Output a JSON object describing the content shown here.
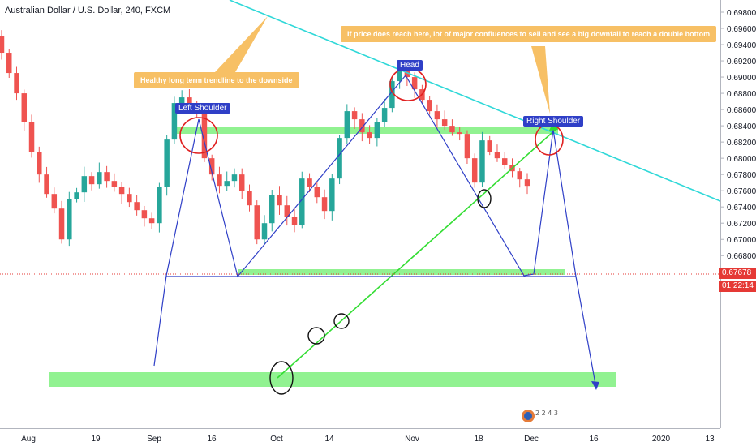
{
  "symbol_title": "Australian Dollar / U.S. Dollar, 240, FXCM",
  "colors": {
    "up": "#26a69a",
    "down": "#ef5350",
    "pattern": "#2f3fc7",
    "trend_down": "#2fd8d8",
    "trend_up": "#33dd33",
    "zone": "#7ef07e",
    "note": "#f7c065",
    "circle": "#e02020",
    "price_line": "#e53935",
    "price_flag": "#e53935",
    "countdown_flag": "#e53935"
  },
  "annotations": {
    "trendline_note": "Healthy long term trendline to the downside",
    "confluence_note": "If price does reach here, lot of major confluences to sell and see a big downfall to reach a double bottom",
    "left_shoulder": "Left Shoulder",
    "head": "Head",
    "right_shoulder": "Right Shoulder"
  },
  "price_flag": "0.67678",
  "countdown": "01:22:14",
  "chart_data": {
    "type": "candlestick",
    "title": "Australian Dollar / U.S. Dollar, 240, FXCM",
    "x_tick_labels": [
      "Aug",
      "19",
      "Sep",
      "16",
      "Oct",
      "14",
      "Nov",
      "18",
      "Dec",
      "16",
      "2020",
      "13"
    ],
    "y_tick_labels": [
      "0.69800",
      "0.69600",
      "0.69400",
      "0.69200",
      "0.69000",
      "0.68800",
      "0.68600",
      "0.68400",
      "0.68200",
      "0.68000",
      "0.67800",
      "0.67600",
      "0.67400",
      "0.67200",
      "0.67000",
      "0.66800",
      "0.66600"
    ],
    "ylim": [
      0.6652,
      0.6988
    ],
    "last_price": 0.67678,
    "series": [
      {
        "values": [
          [
            0.695,
            0.693
          ],
          [
            0.693,
            0.6905
          ],
          [
            0.6905,
            0.688
          ],
          [
            0.688,
            0.6845
          ],
          [
            0.6845,
            0.6808
          ],
          [
            0.6808,
            0.678
          ],
          [
            0.678,
            0.6756
          ],
          [
            0.6756,
            0.6738
          ],
          [
            0.6738,
            0.67
          ],
          [
            0.67,
            0.675
          ],
          [
            0.675,
            0.6758
          ],
          [
            0.6758,
            0.6778
          ],
          [
            0.6778,
            0.6768
          ],
          [
            0.6768,
            0.6783
          ],
          [
            0.6783,
            0.6772
          ],
          [
            0.6772,
            0.6765
          ],
          [
            0.6765,
            0.6756
          ],
          [
            0.6756,
            0.6746
          ],
          [
            0.6746,
            0.6736
          ],
          [
            0.6736,
            0.6726
          ],
          [
            0.6726,
            0.672
          ],
          [
            0.672,
            0.6765
          ],
          [
            0.6765,
            0.6823
          ],
          [
            0.6823,
            0.6868
          ],
          [
            0.6868,
            0.6875
          ],
          [
            0.6875,
            0.6865
          ],
          [
            0.6865,
            0.6855
          ],
          [
            0.6855,
            0.68
          ],
          [
            0.68,
            0.678
          ],
          [
            0.678,
            0.6766
          ],
          [
            0.6766,
            0.6772
          ],
          [
            0.6772,
            0.678
          ],
          [
            0.678,
            0.676
          ],
          [
            0.676,
            0.6742
          ],
          [
            0.6742,
            0.67
          ],
          [
            0.67,
            0.672
          ],
          [
            0.672,
            0.6755
          ],
          [
            0.6755,
            0.6742
          ],
          [
            0.6742,
            0.6728
          ],
          [
            0.6728,
            0.6718
          ],
          [
            0.6718,
            0.6775
          ],
          [
            0.6775,
            0.6765
          ],
          [
            0.6765,
            0.6752
          ],
          [
            0.6752,
            0.6735
          ],
          [
            0.6735,
            0.6775
          ],
          [
            0.6775,
            0.6825
          ],
          [
            0.6825,
            0.6858
          ],
          [
            0.6858,
            0.6848
          ],
          [
            0.6848,
            0.6832
          ],
          [
            0.6832,
            0.6825
          ],
          [
            0.6825,
            0.6845
          ],
          [
            0.6845,
            0.6862
          ],
          [
            0.6862,
            0.6895
          ],
          [
            0.6895,
            0.691
          ],
          [
            0.691,
            0.69
          ],
          [
            0.69,
            0.6885
          ],
          [
            0.6885,
            0.6872
          ],
          [
            0.6872,
            0.6858
          ],
          [
            0.6858,
            0.6848
          ],
          [
            0.6848,
            0.684
          ],
          [
            0.684,
            0.6832
          ],
          [
            0.6832,
            0.683
          ],
          [
            0.683,
            0.68
          ],
          [
            0.68,
            0.677
          ],
          [
            0.677,
            0.6822
          ],
          [
            0.6822,
            0.6808
          ],
          [
            0.6808,
            0.68
          ],
          [
            0.68,
            0.6792
          ],
          [
            0.6792,
            0.6784
          ],
          [
            0.6784,
            0.6774
          ],
          [
            0.6774,
            0.6766
          ]
        ]
      }
    ]
  }
}
